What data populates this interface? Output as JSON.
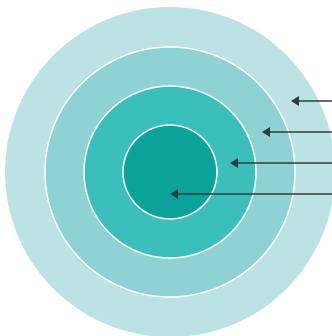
{
  "diagram": {
    "type": "concentric-rings",
    "rings": [
      {
        "level": 1,
        "color": "#bde2e4"
      },
      {
        "level": 2,
        "color": "#8fd2d3"
      },
      {
        "level": 3,
        "color": "#3bbfbb"
      },
      {
        "level": 4,
        "color": "#0ba39a"
      }
    ],
    "ring_border_color": "#ffffff",
    "arrow_color": "#2f3d3d",
    "arrow_count": 4
  }
}
